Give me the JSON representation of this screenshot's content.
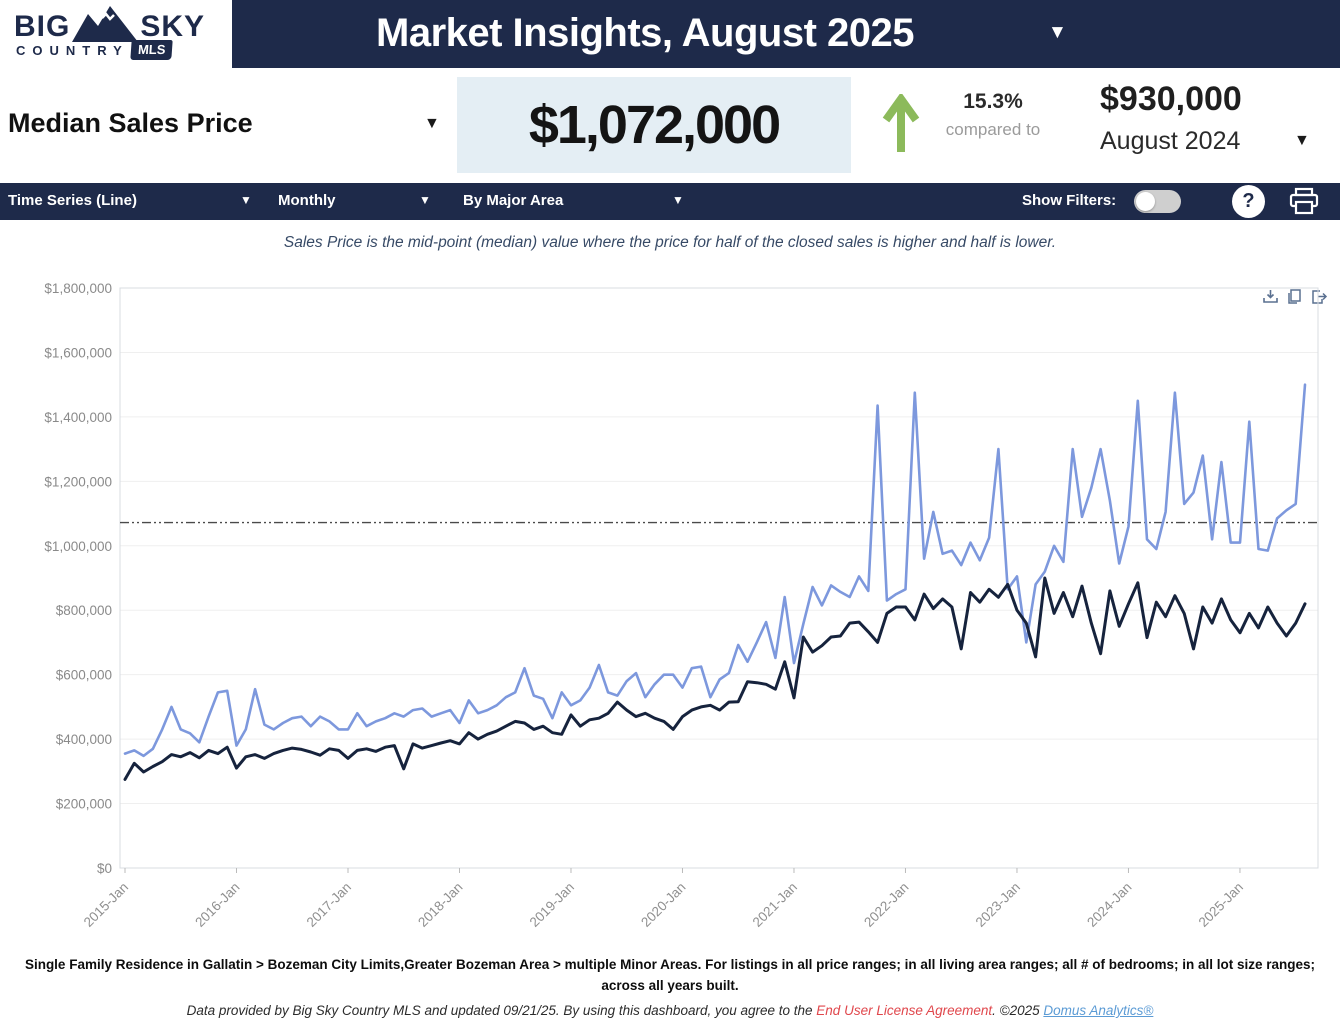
{
  "header": {
    "logo": {
      "big": "BIG",
      "sky": "SKY",
      "country": "COUNTRY",
      "badge": "MLS"
    },
    "title": "Market Insights, August 2025"
  },
  "metric": {
    "label": "Median Sales Price",
    "value": "$1,072,000",
    "change_pct": "15.3%",
    "compared_to": "compared to",
    "prev_value": "$930,000",
    "prev_period": "August 2024"
  },
  "toolbar": {
    "chart_type": "Time Series (Line)",
    "frequency": "Monthly",
    "grouping": "By Major Area",
    "show_filters_label": "Show Filters:",
    "help_label": "?"
  },
  "subtitle": "Sales Price is the mid-point (median) value where the price for half of the closed sales is higher and half is lower.",
  "footer": {
    "criteria": "Single Family Residence in Gallatin > Bozeman City Limits,Greater Bozeman Area > multiple Minor Areas. For listings in all price ranges; in all living area ranges; all # of bedrooms; in all lot size ranges; across all years built.",
    "attribution_prefix": "Data provided by Big Sky Country MLS and updated 09/21/25.  By using this dashboard, you agree to the ",
    "eula_link": "End User License Agreement",
    "attribution_mid": ".  ©2025 ",
    "analytics_link": "Domus Analytics®"
  },
  "colors": {
    "brand_navy": "#1e2a4a",
    "value_box_bg": "#e4eef4",
    "positive_green": "#8cba5b",
    "eula_red": "#e0474c",
    "link_blue": "#5b9bd5"
  },
  "chart_data": {
    "type": "line",
    "frequency": "monthly",
    "x_range": [
      "2015-Jan",
      "2025-Aug"
    ],
    "reference_line": 1072000,
    "grid": true,
    "legend": "none",
    "y_axis": {
      "max": 1800000,
      "tick_values": [
        0,
        200000,
        400000,
        600000,
        800000,
        1000000,
        1200000,
        1400000,
        1600000,
        1800000
      ],
      "tick_labels": [
        "$0",
        "$200,000",
        "$400,000",
        "$600,000",
        "$800,000",
        "$1,000,000",
        "$1,200,000",
        "$1,400,000",
        "$1,600,000",
        "$1,800,000"
      ]
    },
    "x_axis": {
      "tick_labels": [
        "2015-Jan",
        "2016-Jan",
        "2017-Jan",
        "2018-Jan",
        "2019-Jan",
        "2020-Jan",
        "2021-Jan",
        "2022-Jan",
        "2023-Jan",
        "2024-Jan",
        "2025-Jan"
      ],
      "months_per_tick": 12
    },
    "series": [
      {
        "name": "major-area-light-blue",
        "color": "#7d98dd",
        "width": 2.6,
        "values": [
          355000,
          365000,
          348000,
          370000,
          430000,
          500000,
          430000,
          418000,
          390000,
          470000,
          545000,
          550000,
          380000,
          430000,
          555000,
          445000,
          430000,
          450000,
          465000,
          470000,
          440000,
          470000,
          455000,
          430000,
          430000,
          480000,
          440000,
          455000,
          465000,
          480000,
          470000,
          490000,
          495000,
          470000,
          480000,
          490000,
          450000,
          520000,
          480000,
          490000,
          505000,
          530000,
          545000,
          620000,
          535000,
          525000,
          465000,
          545000,
          505000,
          520000,
          560000,
          630000,
          545000,
          535000,
          580000,
          605000,
          530000,
          570000,
          600000,
          600000,
          560000,
          620000,
          625000,
          530000,
          585000,
          605000,
          692000,
          640000,
          700000,
          763000,
          652000,
          841000,
          636000,
          757000,
          872000,
          815000,
          877000,
          857000,
          841000,
          905000,
          860000,
          1435000,
          830000,
          850000,
          865000,
          1475000,
          960000,
          1105000,
          975000,
          985000,
          940000,
          1010000,
          955000,
          1025000,
          1300000,
          865000,
          905000,
          700000,
          880000,
          920000,
          1000000,
          950000,
          1300000,
          1090000,
          1180000,
          1300000,
          1140000,
          945000,
          1060000,
          1450000,
          1020000,
          990000,
          1105000,
          1475000,
          1130000,
          1165000,
          1280000,
          1020000,
          1260000,
          1010000,
          1010000,
          1385000,
          990000,
          985000,
          1085000,
          1110000,
          1130000,
          1500000
        ]
      },
      {
        "name": "major-area-dark-navy",
        "color": "#16233d",
        "width": 3,
        "values": [
          275000,
          325000,
          298000,
          315000,
          330000,
          352000,
          345000,
          358000,
          342000,
          365000,
          355000,
          375000,
          310000,
          345000,
          352000,
          340000,
          355000,
          365000,
          372000,
          368000,
          360000,
          350000,
          370000,
          365000,
          340000,
          365000,
          370000,
          362000,
          375000,
          380000,
          308000,
          385000,
          372000,
          380000,
          388000,
          395000,
          385000,
          420000,
          400000,
          415000,
          425000,
          440000,
          455000,
          450000,
          430000,
          440000,
          420000,
          415000,
          475000,
          440000,
          460000,
          465000,
          480000,
          515000,
          490000,
          470000,
          480000,
          465000,
          455000,
          430000,
          470000,
          490000,
          500000,
          505000,
          490000,
          515000,
          516000,
          578000,
          575000,
          570000,
          555000,
          640000,
          528000,
          717000,
          670000,
          690000,
          717000,
          720000,
          760000,
          763000,
          733000,
          700000,
          790000,
          810000,
          810000,
          770000,
          850000,
          805000,
          835000,
          810000,
          680000,
          855000,
          825000,
          865000,
          840000,
          880000,
          800000,
          760000,
          655000,
          900000,
          790000,
          855000,
          780000,
          875000,
          760000,
          665000,
          860000,
          750000,
          820000,
          885000,
          715000,
          825000,
          780000,
          845000,
          790000,
          680000,
          810000,
          760000,
          835000,
          770000,
          730000,
          790000,
          745000,
          810000,
          760000,
          720000,
          760000,
          820000
        ]
      }
    ]
  }
}
